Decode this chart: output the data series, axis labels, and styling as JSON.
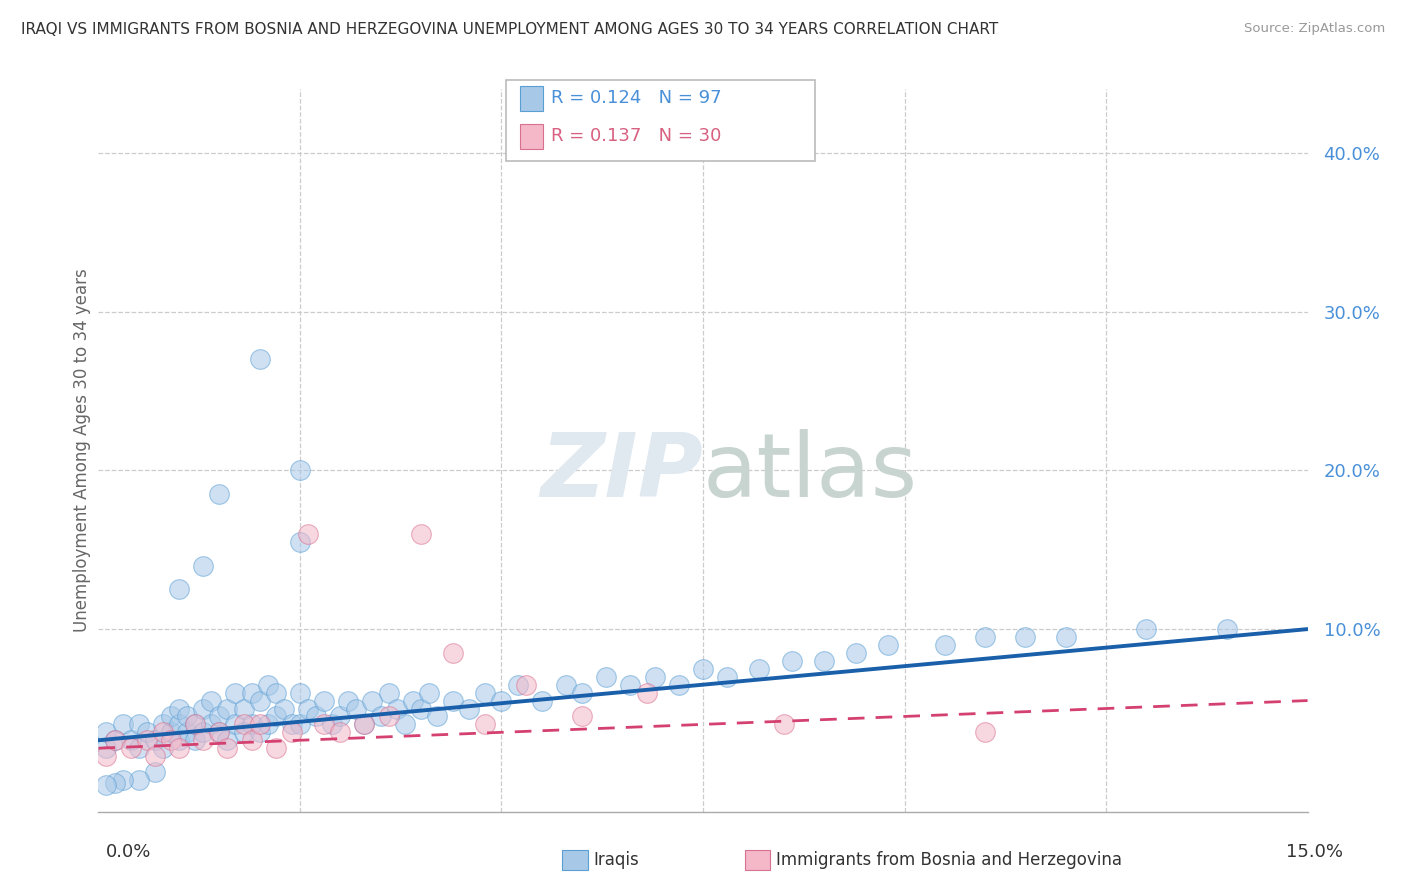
{
  "title": "IRAQI VS IMMIGRANTS FROM BOSNIA AND HERZEGOVINA UNEMPLOYMENT AMONG AGES 30 TO 34 YEARS CORRELATION CHART",
  "source": "Source: ZipAtlas.com",
  "ylabel": "Unemployment Among Ages 30 to 34 years",
  "xlim": [
    0.0,
    0.15
  ],
  "ylim": [
    -0.015,
    0.44
  ],
  "series1_name": "Iraqis",
  "series1_color": "#a8c8e8",
  "series1_edge": "#5a9fd4",
  "series1_R": "0.124",
  "series1_N": "97",
  "series2_name": "Immigrants from Bosnia and Herzegovina",
  "series2_color": "#f4b8c8",
  "series2_edge": "#d87090",
  "series2_R": "0.137",
  "series2_N": "30",
  "trendline1_color": "#1a5faa",
  "trendline2_color": "#d44070",
  "legend_color1": "#4a90d9",
  "legend_color2": "#d86080",
  "iraqis_x": [
    0.001,
    0.001,
    0.002,
    0.003,
    0.004,
    0.005,
    0.005,
    0.006,
    0.007,
    0.008,
    0.008,
    0.009,
    0.009,
    0.01,
    0.01,
    0.01,
    0.011,
    0.011,
    0.012,
    0.012,
    0.013,
    0.013,
    0.014,
    0.014,
    0.015,
    0.015,
    0.016,
    0.016,
    0.017,
    0.017,
    0.018,
    0.018,
    0.019,
    0.019,
    0.02,
    0.02,
    0.021,
    0.021,
    0.022,
    0.022,
    0.023,
    0.024,
    0.025,
    0.025,
    0.026,
    0.027,
    0.028,
    0.029,
    0.03,
    0.031,
    0.032,
    0.033,
    0.034,
    0.035,
    0.036,
    0.037,
    0.038,
    0.039,
    0.04,
    0.041,
    0.042,
    0.044,
    0.046,
    0.048,
    0.05,
    0.052,
    0.055,
    0.058,
    0.06,
    0.063,
    0.066,
    0.069,
    0.072,
    0.075,
    0.078,
    0.082,
    0.086,
    0.09,
    0.094,
    0.098,
    0.105,
    0.11,
    0.115,
    0.12,
    0.13,
    0.14,
    0.02,
    0.025,
    0.025,
    0.015,
    0.013,
    0.01,
    0.007,
    0.005,
    0.003,
    0.002,
    0.001
  ],
  "iraqis_y": [
    0.025,
    0.035,
    0.03,
    0.04,
    0.03,
    0.025,
    0.04,
    0.035,
    0.03,
    0.025,
    0.04,
    0.035,
    0.045,
    0.03,
    0.04,
    0.05,
    0.035,
    0.045,
    0.03,
    0.04,
    0.035,
    0.05,
    0.04,
    0.055,
    0.035,
    0.045,
    0.03,
    0.05,
    0.04,
    0.06,
    0.035,
    0.05,
    0.04,
    0.06,
    0.035,
    0.055,
    0.04,
    0.065,
    0.045,
    0.06,
    0.05,
    0.04,
    0.04,
    0.06,
    0.05,
    0.045,
    0.055,
    0.04,
    0.045,
    0.055,
    0.05,
    0.04,
    0.055,
    0.045,
    0.06,
    0.05,
    0.04,
    0.055,
    0.05,
    0.06,
    0.045,
    0.055,
    0.05,
    0.06,
    0.055,
    0.065,
    0.055,
    0.065,
    0.06,
    0.07,
    0.065,
    0.07,
    0.065,
    0.075,
    0.07,
    0.075,
    0.08,
    0.08,
    0.085,
    0.09,
    0.09,
    0.095,
    0.095,
    0.095,
    0.1,
    0.1,
    0.27,
    0.2,
    0.155,
    0.185,
    0.14,
    0.125,
    0.01,
    0.005,
    0.005,
    0.003,
    0.002
  ],
  "bosnia_x": [
    0.001,
    0.002,
    0.004,
    0.006,
    0.007,
    0.008,
    0.009,
    0.01,
    0.012,
    0.013,
    0.015,
    0.016,
    0.018,
    0.019,
    0.02,
    0.022,
    0.024,
    0.026,
    0.028,
    0.03,
    0.033,
    0.036,
    0.04,
    0.044,
    0.048,
    0.053,
    0.06,
    0.068,
    0.085,
    0.11
  ],
  "bosnia_y": [
    0.02,
    0.03,
    0.025,
    0.03,
    0.02,
    0.035,
    0.03,
    0.025,
    0.04,
    0.03,
    0.035,
    0.025,
    0.04,
    0.03,
    0.04,
    0.025,
    0.035,
    0.16,
    0.04,
    0.035,
    0.04,
    0.045,
    0.16,
    0.085,
    0.04,
    0.065,
    0.045,
    0.06,
    0.04,
    0.035
  ],
  "trendline1_x0": 0.0,
  "trendline1_y0": 0.03,
  "trendline1_x1": 0.15,
  "trendline1_y1": 0.1,
  "trendline2_x0": 0.0,
  "trendline2_y0": 0.025,
  "trendline2_x1": 0.15,
  "trendline2_y1": 0.055
}
